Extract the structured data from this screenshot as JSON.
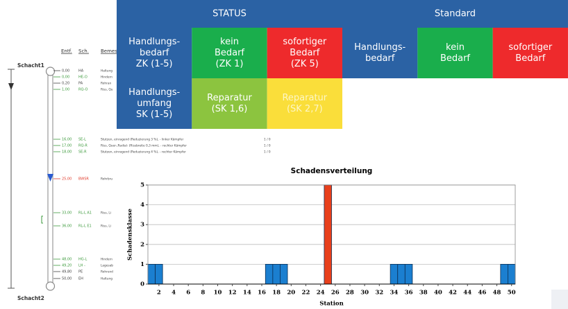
{
  "status_table": {
    "header": [
      "STATUS",
      "Standard"
    ],
    "rows": [
      [
        {
          "lines": [
            "Handlungs-",
            "bedarf",
            "ZK (1-5)"
          ],
          "color": "#2b62a4"
        },
        {
          "lines": [
            "kein",
            "Bedarf",
            "(ZK 1)"
          ],
          "color": "#1aae4c"
        },
        {
          "lines": [
            "sofortiger",
            "Bedarf",
            "(ZK 5)"
          ],
          "color": "#ee2a2c"
        },
        {
          "lines": [
            "Handlungs-",
            "bedarf"
          ],
          "color": "#2b62a4"
        },
        {
          "lines": [
            "kein",
            "Bedarf"
          ],
          "color": "#1aae4c"
        },
        {
          "lines": [
            "sofortiger",
            "Bedarf"
          ],
          "color": "#ee2a2c"
        }
      ],
      [
        {
          "lines": [
            "Handlungs-",
            "umfang",
            "SK (1-5)"
          ],
          "color": "#2b62a4"
        },
        {
          "lines": [
            "Reparatur",
            "(SK 1,6)"
          ],
          "color": "#8cc43f"
        },
        {
          "lines": [
            "Reparatur",
            "(SK 2,7)"
          ],
          "color": "#fade3a"
        }
      ]
    ]
  },
  "pipe_log": {
    "columns": [
      "Entf.",
      "Sch.",
      "Bemes"
    ],
    "start": "Schacht1",
    "end": "Schacht2",
    "entries": [
      {
        "distance": "0,00",
        "code": "HA",
        "text": "Haltung",
        "color": "#444444"
      },
      {
        "distance": "0,00",
        "code": "HE-O",
        "text": "Hindern",
        "color": "#3c9a3c"
      },
      {
        "distance": "0,20",
        "code": "PA",
        "text": "Rohran",
        "color": "#444444"
      },
      {
        "distance": "1,00",
        "code": "RQ-O",
        "text": "Riss, Qu",
        "color": "#3c9a3c"
      },
      {
        "distance": "16,00",
        "code": "SE-L",
        "text": "Stutzen, einragend (Reduzierung 3 %), - linker Kämpfer",
        "class": "1 / 0",
        "color": "#3c9a3c"
      },
      {
        "distance": "17,00",
        "code": "RQ-R",
        "text": "Riss, Quer-,Radial- (Rissbreite 0,3 mm), - rechter Kämpfer",
        "class": "1 / 0",
        "color": "#3c9a3c"
      },
      {
        "distance": "18,00",
        "code": "SE-R",
        "text": "Stutzen, einragend (Reduzierung 4 %), - rechter Kämpfer",
        "class": "1 / 0",
        "color": "#3c9a3c"
      },
      {
        "distance": "25,00",
        "code": "BWSR",
        "text": "Rohrbru",
        "color": "#e03a2a"
      },
      {
        "distance": "33,00",
        "code": "RL-L A1",
        "text": "Riss, Li",
        "color": "#3c9a3c"
      },
      {
        "distance": "36,00",
        "code": "RL-L E1",
        "text": "Riss, Li",
        "color": "#3c9a3c"
      },
      {
        "distance": "48,00",
        "code": "HG-L",
        "text": "Hindern",
        "color": "#3c9a3c"
      },
      {
        "distance": "49,20",
        "code": "LH -",
        "text": "Lagesab",
        "color": "#3c9a3c"
      },
      {
        "distance": "49,80",
        "code": "PE",
        "text": "Rohrend",
        "color": "#444444"
      },
      {
        "distance": "50,00",
        "code": "EH",
        "text": "Haltung",
        "color": "#444444"
      }
    ]
  },
  "chart_data": {
    "type": "bar",
    "title": "Schadensverteilung",
    "x_label": "Station",
    "y_label": "Schadensklasse",
    "x": [
      1,
      2,
      17,
      18,
      19,
      25,
      34,
      35,
      36,
      49,
      50
    ],
    "values": [
      1,
      1,
      1,
      1,
      1,
      5,
      1,
      1,
      1,
      1,
      1
    ],
    "colors": [
      "#1b7fd0",
      "#1b7fd0",
      "#1b7fd0",
      "#1b7fd0",
      "#1b7fd0",
      "#e8401c",
      "#1b7fd0",
      "#1b7fd0",
      "#1b7fd0",
      "#1b7fd0",
      "#1b7fd0"
    ],
    "xlim": [
      0.5,
      50.5
    ],
    "xticks": [
      2,
      4,
      6,
      8,
      10,
      12,
      14,
      16,
      18,
      20,
      22,
      24,
      26,
      28,
      30,
      32,
      34,
      36,
      38,
      40,
      42,
      44,
      46,
      48,
      50
    ],
    "ylim": [
      0,
      5
    ],
    "yticks": [
      0,
      1,
      2,
      3,
      4,
      5
    ],
    "grid": true
  }
}
